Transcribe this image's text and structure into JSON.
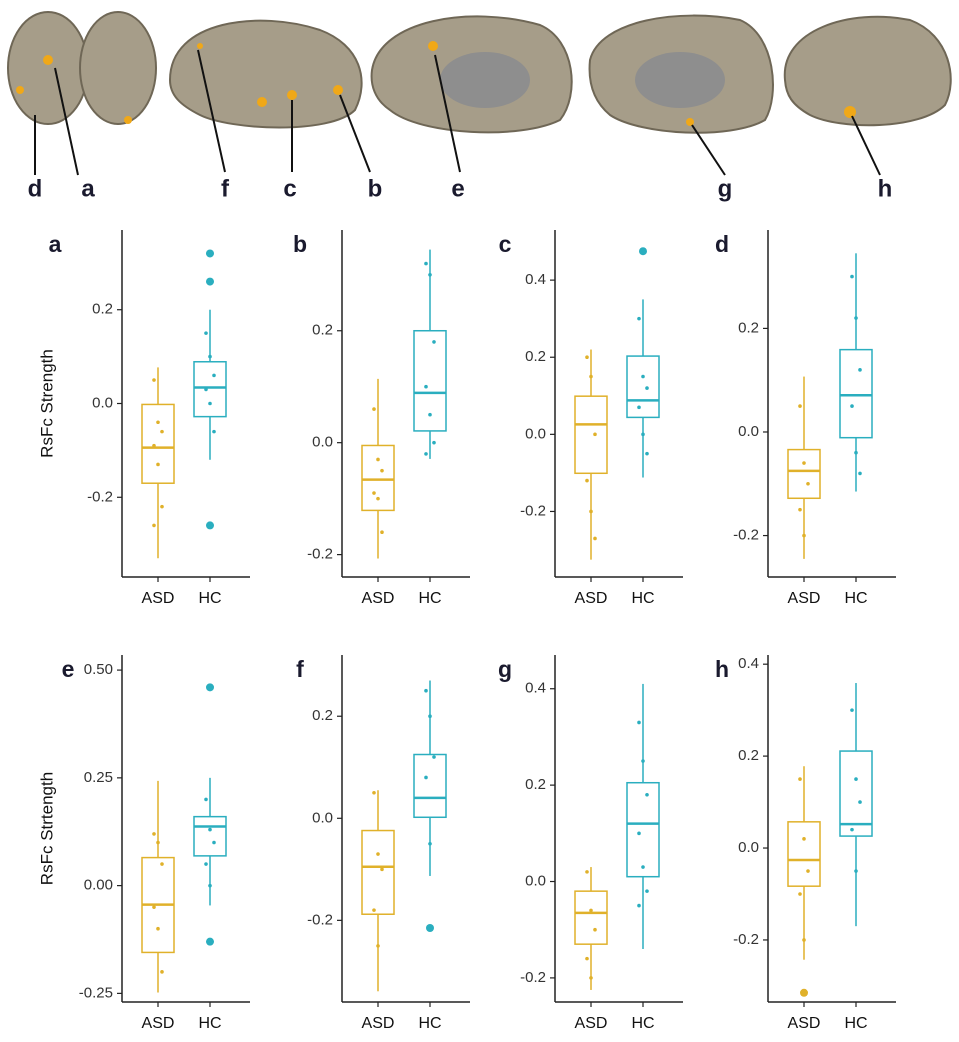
{
  "brain_labels": [
    "d",
    "a",
    "f",
    "c",
    "b",
    "e",
    "g",
    "h"
  ],
  "chart_data": [
    {
      "type": "box",
      "panel": "a",
      "ylabel": "RsFc Strength",
      "categories": [
        "ASD",
        "HC"
      ],
      "colors": [
        "#e0b12a",
        "#2aaebf"
      ],
      "ylim": [
        -0.37,
        0.37
      ],
      "yticks": [
        -0.2,
        {
          "value": 0,
          "label": "0.0"
        },
        0.2
      ],
      "boxes": [
        {
          "whisker_low": -0.33,
          "q1": -0.17,
          "median": -0.094,
          "q3": -0.002,
          "whisker_high": 0.077,
          "outliers": [],
          "points": [
            0.05,
            -0.04,
            -0.06,
            -0.09,
            -0.13,
            -0.22,
            -0.26
          ]
        },
        {
          "whisker_low": -0.12,
          "q1": -0.028,
          "median": 0.034,
          "q3": 0.089,
          "whisker_high": 0.2,
          "outliers": [
            0.32,
            0.26,
            -0.26
          ],
          "points": [
            0.15,
            0.1,
            0.06,
            0.03,
            0.0,
            -0.06
          ]
        }
      ]
    },
    {
      "type": "box",
      "panel": "b",
      "categories": [
        "ASD",
        "HC"
      ],
      "colors": [
        "#e0b12a",
        "#2aaebf"
      ],
      "ylim": [
        -0.24,
        0.38
      ],
      "yticks": [
        -0.2,
        {
          "value": 0,
          "label": "0.0"
        },
        0.2
      ],
      "boxes": [
        {
          "whisker_low": -0.207,
          "q1": -0.121,
          "median": -0.066,
          "q3": -0.005,
          "whisker_high": 0.114,
          "outliers": [],
          "points": [
            0.06,
            -0.03,
            -0.05,
            -0.09,
            -0.1,
            -0.16
          ]
        },
        {
          "whisker_low": -0.029,
          "q1": 0.021,
          "median": 0.089,
          "q3": 0.2,
          "whisker_high": 0.345,
          "outliers": [],
          "points": [
            0.32,
            0.3,
            0.18,
            0.1,
            0.05,
            0.0,
            -0.02
          ]
        }
      ]
    },
    {
      "type": "box",
      "panel": "c",
      "categories": [
        "ASD",
        "HC"
      ],
      "colors": [
        "#e0b12a",
        "#2aaebf"
      ],
      "ylim": [
        -0.37,
        0.53
      ],
      "yticks": [
        -0.2,
        {
          "value": 0,
          "label": "0.0"
        },
        0.2,
        0.4
      ],
      "boxes": [
        {
          "whisker_low": -0.325,
          "q1": -0.101,
          "median": 0.026,
          "q3": 0.099,
          "whisker_high": 0.22,
          "outliers": [],
          "points": [
            0.2,
            0.15,
            0.0,
            -0.12,
            -0.2,
            -0.27
          ]
        },
        {
          "whisker_low": -0.112,
          "q1": 0.044,
          "median": 0.088,
          "q3": 0.203,
          "whisker_high": 0.35,
          "outliers": [
            0.475
          ],
          "points": [
            0.3,
            0.15,
            0.12,
            0.07,
            0.0,
            -0.05
          ]
        }
      ]
    },
    {
      "type": "box",
      "panel": "d",
      "categories": [
        "ASD",
        "HC"
      ],
      "colors": [
        "#e0b12a",
        "#2aaebf"
      ],
      "ylim": [
        -0.28,
        0.39
      ],
      "yticks": [
        -0.2,
        {
          "value": 0,
          "label": "0.0"
        },
        0.2
      ],
      "boxes": [
        {
          "whisker_low": -0.245,
          "q1": -0.128,
          "median": -0.075,
          "q3": -0.034,
          "whisker_high": 0.107,
          "outliers": [],
          "points": [
            0.05,
            -0.06,
            -0.1,
            -0.15,
            -0.2
          ]
        },
        {
          "whisker_low": -0.115,
          "q1": -0.011,
          "median": 0.071,
          "q3": 0.159,
          "whisker_high": 0.345,
          "outliers": [],
          "points": [
            0.3,
            0.22,
            0.12,
            0.05,
            -0.04,
            -0.08
          ]
        }
      ]
    },
    {
      "type": "box",
      "panel": "e",
      "ylabel": "RsFc Strtength",
      "categories": [
        "ASD",
        "HC"
      ],
      "colors": [
        "#e0b12a",
        "#2aaebf"
      ],
      "ylim": [
        -0.27,
        0.535
      ],
      "yticks": [
        -0.25,
        {
          "value": 0,
          "label": "0.00"
        },
        0.25,
        {
          "value": 0.5,
          "label": "0.50"
        }
      ],
      "boxes": [
        {
          "whisker_low": -0.248,
          "q1": -0.155,
          "median": -0.044,
          "q3": 0.065,
          "whisker_high": 0.243,
          "outliers": [],
          "points": [
            0.12,
            0.1,
            0.05,
            -0.05,
            -0.1,
            -0.2
          ]
        },
        {
          "whisker_low": -0.046,
          "q1": 0.069,
          "median": 0.137,
          "q3": 0.16,
          "whisker_high": 0.25,
          "outliers": [
            0.46,
            -0.13
          ],
          "points": [
            0.2,
            0.13,
            0.1,
            0.05,
            0.0
          ]
        }
      ]
    },
    {
      "type": "box",
      "panel": "f",
      "categories": [
        "ASD",
        "HC"
      ],
      "colors": [
        "#e0b12a",
        "#2aaebf"
      ],
      "ylim": [
        -0.36,
        0.32
      ],
      "yticks": [
        -0.2,
        {
          "value": 0,
          "label": "0.0"
        },
        0.2
      ],
      "boxes": [
        {
          "whisker_low": -0.339,
          "q1": -0.188,
          "median": -0.095,
          "q3": -0.024,
          "whisker_high": 0.055,
          "outliers": [],
          "points": [
            0.05,
            -0.07,
            -0.1,
            -0.18,
            -0.25
          ]
        },
        {
          "whisker_low": -0.113,
          "q1": 0.002,
          "median": 0.04,
          "q3": 0.125,
          "whisker_high": 0.27,
          "outliers": [
            -0.215
          ],
          "points": [
            0.25,
            0.2,
            0.12,
            0.08,
            -0.05
          ]
        }
      ]
    },
    {
      "type": "box",
      "panel": "g",
      "categories": [
        "ASD",
        "HC"
      ],
      "colors": [
        "#e0b12a",
        "#2aaebf"
      ],
      "ylim": [
        -0.25,
        0.47
      ],
      "yticks": [
        -0.2,
        {
          "value": 0,
          "label": "0.0"
        },
        0.2,
        0.4
      ],
      "boxes": [
        {
          "whisker_low": -0.225,
          "q1": -0.13,
          "median": -0.065,
          "q3": -0.02,
          "whisker_high": 0.03,
          "outliers": [],
          "points": [
            0.02,
            -0.06,
            -0.1,
            -0.16,
            -0.2
          ]
        },
        {
          "whisker_low": -0.14,
          "q1": 0.01,
          "median": 0.12,
          "q3": 0.205,
          "whisker_high": 0.41,
          "outliers": [],
          "points": [
            0.33,
            0.25,
            0.18,
            0.1,
            0.03,
            -0.02,
            -0.05
          ]
        }
      ]
    },
    {
      "type": "box",
      "panel": "h",
      "categories": [
        "ASD",
        "HC"
      ],
      "colors": [
        "#e0b12a",
        "#2aaebf"
      ],
      "ylim": [
        -0.335,
        0.42
      ],
      "yticks": [
        -0.2,
        {
          "value": 0,
          "label": "0.0"
        },
        0.2,
        0.4
      ],
      "boxes": [
        {
          "whisker_low": -0.243,
          "q1": -0.083,
          "median": -0.026,
          "q3": 0.057,
          "whisker_high": 0.178,
          "outliers": [
            -0.315
          ],
          "points": [
            0.15,
            0.02,
            -0.05,
            -0.1,
            -0.2
          ]
        },
        {
          "whisker_low": -0.17,
          "q1": 0.026,
          "median": 0.052,
          "q3": 0.211,
          "whisker_high": 0.359,
          "outliers": [],
          "points": [
            0.3,
            0.15,
            0.1,
            0.04,
            -0.05
          ]
        }
      ]
    }
  ]
}
